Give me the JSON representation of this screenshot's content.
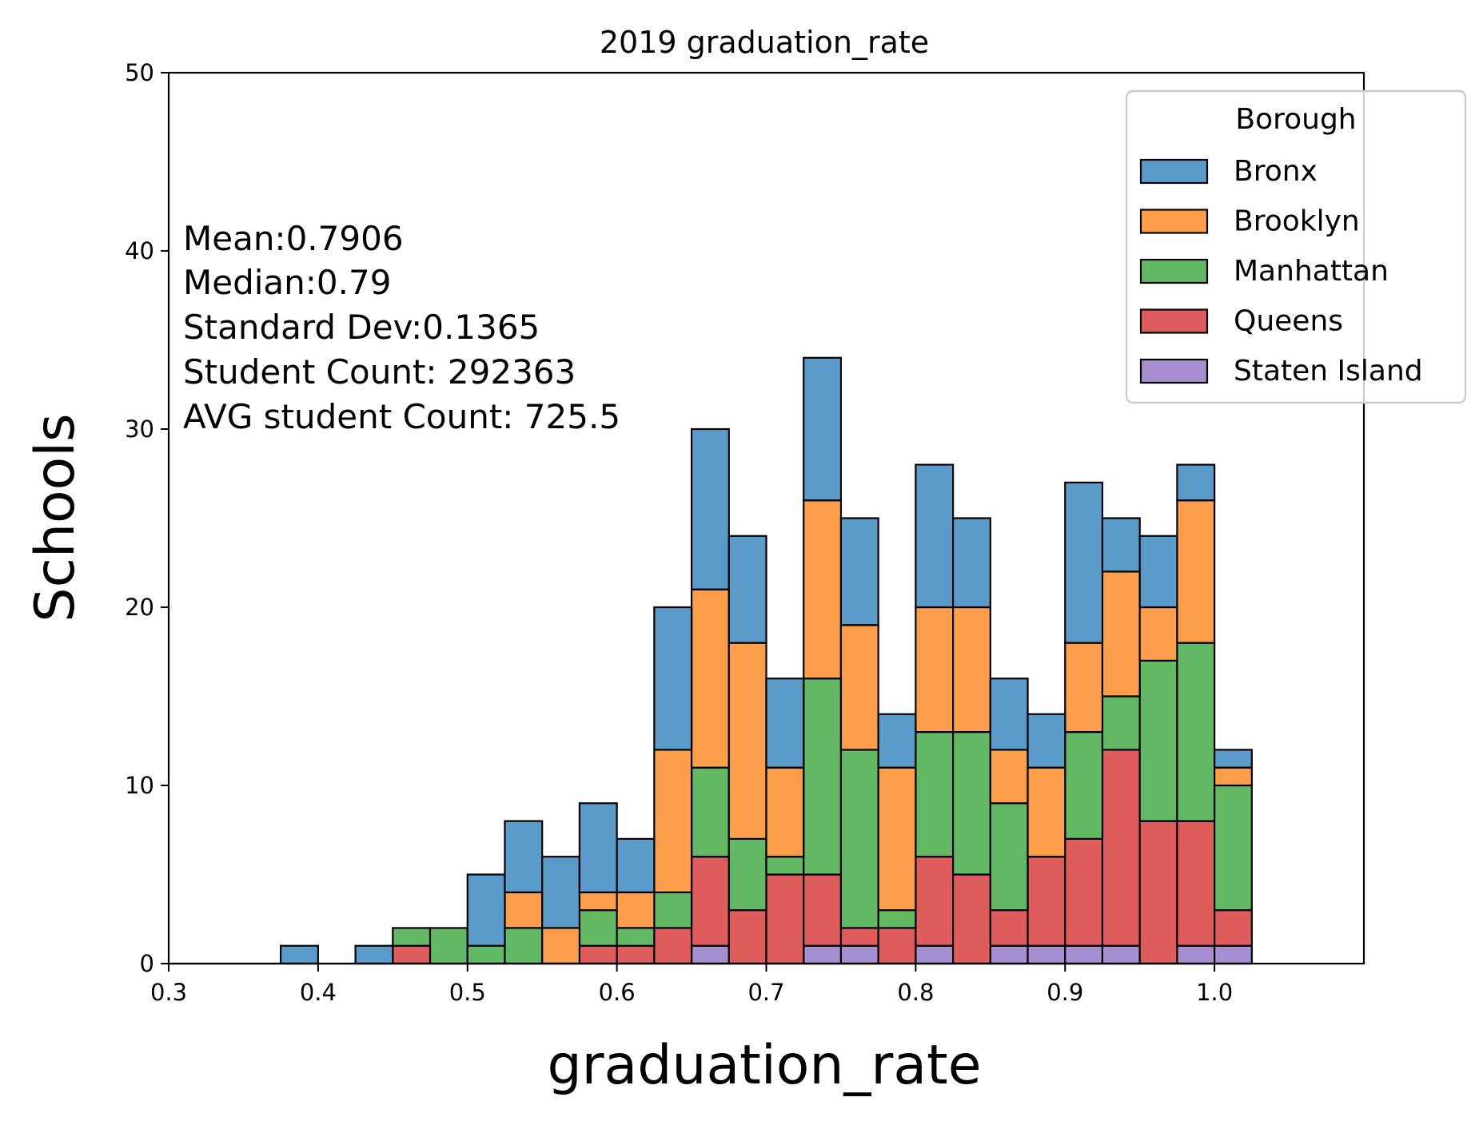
{
  "chart_data": {
    "type": "bar",
    "stacked": true,
    "title": "2019 graduation_rate",
    "xlabel": "graduation_rate",
    "ylabel": "Schools",
    "xlim": [
      0.3,
      1.1
    ],
    "ylim": [
      0,
      50
    ],
    "xticks": [
      "0.3",
      "0.4",
      "0.5",
      "0.6",
      "0.7",
      "0.8",
      "0.9",
      "1.0"
    ],
    "yticks": [
      "0",
      "10",
      "20",
      "30",
      "40",
      "50"
    ],
    "bin_start": 0.375,
    "bin_width": 0.025,
    "x": [
      0.375,
      0.4,
      0.425,
      0.45,
      0.475,
      0.5,
      0.525,
      0.55,
      0.575,
      0.6,
      0.625,
      0.65,
      0.675,
      0.7,
      0.725,
      0.75,
      0.775,
      0.8,
      0.825,
      0.85,
      0.875,
      0.9,
      0.925,
      0.95,
      0.975,
      1.0
    ],
    "series": [
      {
        "name": "Staten Island",
        "color": "#a68fd1",
        "values": [
          0,
          0,
          0,
          0,
          0,
          0,
          0,
          0,
          0,
          0,
          0,
          1,
          0,
          0,
          1,
          1,
          0,
          1,
          0,
          1,
          1,
          1,
          1,
          0,
          1,
          1
        ]
      },
      {
        "name": "Queens",
        "color": "#df5c5c",
        "values": [
          0,
          0,
          0,
          1,
          0,
          0,
          0,
          0,
          1,
          1,
          2,
          5,
          3,
          5,
          4,
          1,
          2,
          5,
          5,
          2,
          5,
          6,
          11,
          8,
          7,
          2
        ]
      },
      {
        "name": "Manhattan",
        "color": "#63b963",
        "values": [
          0,
          0,
          0,
          1,
          2,
          1,
          2,
          0,
          2,
          1,
          2,
          5,
          4,
          1,
          11,
          10,
          1,
          7,
          8,
          6,
          0,
          6,
          3,
          9,
          10,
          7
        ]
      },
      {
        "name": "Brooklyn",
        "color": "#fd9f4a",
        "values": [
          0,
          0,
          0,
          0,
          0,
          0,
          2,
          2,
          1,
          2,
          8,
          10,
          11,
          5,
          10,
          7,
          8,
          7,
          7,
          3,
          5,
          5,
          7,
          3,
          8,
          1
        ]
      },
      {
        "name": "Bronx",
        "color": "#5a9bc9",
        "values": [
          1,
          0,
          1,
          0,
          0,
          4,
          4,
          4,
          5,
          3,
          8,
          9,
          6,
          5,
          8,
          6,
          3,
          8,
          5,
          4,
          3,
          9,
          3,
          4,
          2,
          1
        ]
      }
    ],
    "legend": {
      "title": "Borough",
      "placement": "top-right",
      "order": [
        "Bronx",
        "Brooklyn",
        "Manhattan",
        "Queens",
        "Staten Island"
      ]
    },
    "annotations": [
      "Mean:0.7906",
      "Median:0.79",
      "Standard Dev:0.1365",
      "Student Count: 292363",
      "AVG student Count: 725.5"
    ],
    "grid": false
  }
}
